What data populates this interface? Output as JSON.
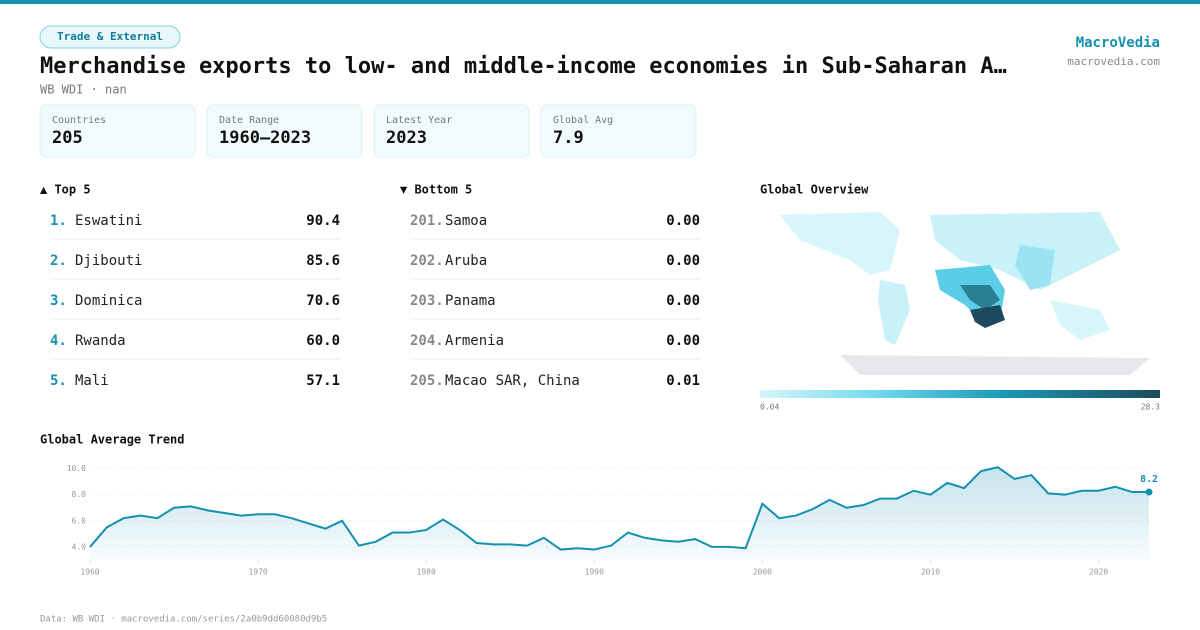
{
  "header": {
    "tag": "Trade & External",
    "title": "Merchandise exports to low- and middle-income economies in Sub-Saharan A…",
    "subtitle": "WB WDI · nan",
    "brand": "MacroVedia",
    "site": "macrovedia.com"
  },
  "stats": [
    {
      "label": "Countries",
      "value": "205"
    },
    {
      "label": "Date Range",
      "value": "1960–2023"
    },
    {
      "label": "Latest Year",
      "value": "2023"
    },
    {
      "label": "Global Avg",
      "value": "7.9"
    }
  ],
  "top5": {
    "title": "▲ Top 5",
    "rows": [
      [
        "1.",
        "Eswatini",
        "90.4"
      ],
      [
        "2.",
        "Djibouti",
        "85.6"
      ],
      [
        "3.",
        "Dominica",
        "70.6"
      ],
      [
        "4.",
        "Rwanda",
        "60.0"
      ],
      [
        "5.",
        "Mali",
        "57.1"
      ]
    ]
  },
  "bottom5": {
    "title": "▼ Bottom 5",
    "rows": [
      [
        "201.",
        "Samoa",
        "0.00"
      ],
      [
        "202.",
        "Aruba",
        "0.00"
      ],
      [
        "203.",
        "Panama",
        "0.00"
      ],
      [
        "204.",
        "Armenia",
        "0.00"
      ],
      [
        "205.",
        "Macao SAR, China",
        "0.01"
      ]
    ]
  },
  "map": {
    "title": "Global Overview",
    "scale_min": "0.04",
    "scale_max": "28.3"
  },
  "chart_data": {
    "type": "line",
    "title": "Global Average Trend",
    "color": "#1490b0",
    "x": [
      1960,
      1961,
      1962,
      1963,
      1964,
      1965,
      1966,
      1967,
      1968,
      1969,
      1970,
      1971,
      1972,
      1973,
      1974,
      1975,
      1976,
      1977,
      1978,
      1979,
      1980,
      1981,
      1982,
      1983,
      1984,
      1985,
      1986,
      1987,
      1988,
      1989,
      1990,
      1991,
      1992,
      1993,
      1994,
      1995,
      1996,
      1997,
      1998,
      1999,
      2000,
      2001,
      2002,
      2003,
      2004,
      2005,
      2006,
      2007,
      2008,
      2009,
      2010,
      2011,
      2012,
      2013,
      2014,
      2015,
      2016,
      2017,
      2018,
      2019,
      2020,
      2021,
      2022,
      2023
    ],
    "series": [
      {
        "name": "Global average",
        "color": "#1490b0",
        "values": [
          4.0,
          5.5,
          6.2,
          6.4,
          6.2,
          7.0,
          7.1,
          6.8,
          6.6,
          6.4,
          6.5,
          6.5,
          6.2,
          5.8,
          5.4,
          6.0,
          4.1,
          4.4,
          5.1,
          5.1,
          5.3,
          6.1,
          5.3,
          4.3,
          4.2,
          4.2,
          4.1,
          4.7,
          3.8,
          3.9,
          3.8,
          4.1,
          5.1,
          4.7,
          4.5,
          4.4,
          4.6,
          4.0,
          4.0,
          3.9,
          7.3,
          6.2,
          6.4,
          6.9,
          7.6,
          7.0,
          7.2,
          7.7,
          7.7,
          8.3,
          8.0,
          8.9,
          8.5,
          9.8,
          10.1,
          9.2,
          9.5,
          8.1,
          8.0,
          8.3,
          8.3,
          8.6,
          8.2,
          8.2
        ]
      }
    ],
    "xlim": [
      1960,
      2023
    ],
    "ylim": [
      3.0,
      10.5
    ],
    "xticks": [
      1960,
      1970,
      1980,
      1990,
      2000,
      2010,
      2020
    ],
    "yticks": [
      {
        "value": 4,
        "label": "4.0"
      },
      {
        "value": 6,
        "label": "6.0"
      },
      {
        "value": 8,
        "label": "8.0"
      },
      {
        "value": 10,
        "label": "10.0"
      }
    ],
    "grid": true
  },
  "footer": "Data: WB WDI · macrovedia.com/series/2a0b9dd60080d9b5"
}
